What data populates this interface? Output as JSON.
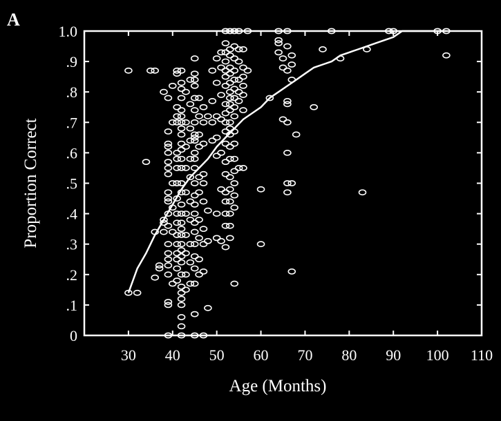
{
  "panel_label": "A",
  "colors": {
    "background": "#000000",
    "foreground": "#ffffff"
  },
  "chart_data": {
    "type": "scatter",
    "xlabel": "Age (Months)",
    "ylabel": "Proportion Correct",
    "xlim": [
      20,
      110
    ],
    "ylim": [
      0,
      1.0
    ],
    "x_ticks": [
      30,
      40,
      50,
      60,
      70,
      80,
      90,
      100,
      110
    ],
    "y_ticks": [
      0,
      0.1,
      0.2,
      0.3,
      0.4,
      0.5,
      0.6,
      0.7,
      0.8,
      0.9,
      1.0
    ],
    "x_tick_labels": [
      "30",
      "40",
      "50",
      "60",
      "70",
      "80",
      "90",
      "100",
      "110"
    ],
    "y_tick_labels": [
      "0",
      ".1",
      ".2",
      ".3",
      ".4",
      ".5",
      ".6",
      ".7",
      ".8",
      ".9",
      "1.0"
    ],
    "grid": false,
    "marker": "open-ellipse",
    "points": [
      [
        30,
        0.14
      ],
      [
        30,
        0.87
      ],
      [
        32,
        0.14
      ],
      [
        34,
        0.57
      ],
      [
        35,
        0.87
      ],
      [
        36,
        0.87
      ],
      [
        36,
        0.34
      ],
      [
        36,
        0.19
      ],
      [
        37,
        0.23
      ],
      [
        37,
        0.22
      ],
      [
        38,
        0.8
      ],
      [
        38,
        0.38
      ],
      [
        38,
        0.34
      ],
      [
        38,
        0.37
      ],
      [
        39,
        0.78
      ],
      [
        39,
        0.67
      ],
      [
        39,
        0.63
      ],
      [
        39,
        0.62
      ],
      [
        39,
        0.6
      ],
      [
        39,
        0.57
      ],
      [
        39,
        0.55
      ],
      [
        39,
        0.53
      ],
      [
        39,
        0.47
      ],
      [
        39,
        0.45
      ],
      [
        39,
        0.44
      ],
      [
        39,
        0.4
      ],
      [
        39,
        0.36
      ],
      [
        39,
        0.3
      ],
      [
        39,
        0.27
      ],
      [
        39,
        0.25
      ],
      [
        39,
        0.23
      ],
      [
        39,
        0.2
      ],
      [
        39,
        0.11
      ],
      [
        39,
        0.1
      ],
      [
        39,
        0.0
      ],
      [
        40,
        0.82
      ],
      [
        40,
        0.7
      ],
      [
        40,
        0.5
      ],
      [
        40,
        0.42
      ],
      [
        40,
        0.34
      ],
      [
        40,
        0.17
      ],
      [
        41,
        0.87
      ],
      [
        41,
        0.86
      ],
      [
        41,
        0.75
      ],
      [
        41,
        0.72
      ],
      [
        41,
        0.7
      ],
      [
        41,
        0.6
      ],
      [
        41,
        0.58
      ],
      [
        41,
        0.55
      ],
      [
        41,
        0.5
      ],
      [
        41,
        0.45
      ],
      [
        41,
        0.4
      ],
      [
        41,
        0.37
      ],
      [
        41,
        0.33
      ],
      [
        41,
        0.3
      ],
      [
        41,
        0.27
      ],
      [
        41,
        0.25
      ],
      [
        41,
        0.22
      ],
      [
        41,
        0.18
      ],
      [
        42,
        0.87
      ],
      [
        42,
        0.83
      ],
      [
        42,
        0.81
      ],
      [
        42,
        0.78
      ],
      [
        42,
        0.74
      ],
      [
        42,
        0.72
      ],
      [
        42,
        0.7
      ],
      [
        42,
        0.68
      ],
      [
        42,
        0.66
      ],
      [
        42,
        0.63
      ],
      [
        42,
        0.61
      ],
      [
        42,
        0.58
      ],
      [
        42,
        0.55
      ],
      [
        42,
        0.5
      ],
      [
        42,
        0.47
      ],
      [
        42,
        0.43
      ],
      [
        42,
        0.4
      ],
      [
        42,
        0.37
      ],
      [
        42,
        0.35
      ],
      [
        42,
        0.33
      ],
      [
        42,
        0.3
      ],
      [
        42,
        0.28
      ],
      [
        42,
        0.26
      ],
      [
        42,
        0.24
      ],
      [
        42,
        0.2
      ],
      [
        42,
        0.16
      ],
      [
        42,
        0.14
      ],
      [
        42,
        0.12
      ],
      [
        42,
        0.1
      ],
      [
        42,
        0.06
      ],
      [
        42,
        0.03
      ],
      [
        42,
        0.0
      ],
      [
        43,
        0.8
      ],
      [
        43,
        0.7
      ],
      [
        43,
        0.62
      ],
      [
        43,
        0.55
      ],
      [
        43,
        0.47
      ],
      [
        43,
        0.4
      ],
      [
        43,
        0.33
      ],
      [
        43,
        0.27
      ],
      [
        43,
        0.2
      ],
      [
        43,
        0.15
      ],
      [
        44,
        0.84
      ],
      [
        44,
        0.76
      ],
      [
        44,
        0.68
      ],
      [
        44,
        0.64
      ],
      [
        44,
        0.58
      ],
      [
        44,
        0.52
      ],
      [
        44,
        0.44
      ],
      [
        44,
        0.38
      ],
      [
        44,
        0.3
      ],
      [
        44,
        0.24
      ],
      [
        44,
        0.17
      ],
      [
        45,
        0.91
      ],
      [
        45,
        0.86
      ],
      [
        45,
        0.84
      ],
      [
        45,
        0.82
      ],
      [
        45,
        0.78
      ],
      [
        45,
        0.74
      ],
      [
        45,
        0.7
      ],
      [
        45,
        0.66
      ],
      [
        45,
        0.65
      ],
      [
        45,
        0.64
      ],
      [
        45,
        0.6
      ],
      [
        45,
        0.58
      ],
      [
        45,
        0.55
      ],
      [
        45,
        0.5
      ],
      [
        45,
        0.46
      ],
      [
        45,
        0.43
      ],
      [
        45,
        0.4
      ],
      [
        45,
        0.37
      ],
      [
        45,
        0.34
      ],
      [
        45,
        0.3
      ],
      [
        45,
        0.26
      ],
      [
        45,
        0.22
      ],
      [
        45,
        0.17
      ],
      [
        45,
        0.07
      ],
      [
        45,
        0.0
      ],
      [
        46,
        0.78
      ],
      [
        46,
        0.72
      ],
      [
        46,
        0.66
      ],
      [
        46,
        0.62
      ],
      [
        46,
        0.52
      ],
      [
        46,
        0.47
      ],
      [
        46,
        0.38
      ],
      [
        46,
        0.32
      ],
      [
        46,
        0.25
      ],
      [
        46,
        0.2
      ],
      [
        47,
        0.75
      ],
      [
        47,
        0.7
      ],
      [
        47,
        0.63
      ],
      [
        47,
        0.53
      ],
      [
        47,
        0.5
      ],
      [
        47,
        0.44
      ],
      [
        47,
        0.35
      ],
      [
        47,
        0.3
      ],
      [
        47,
        0.21
      ],
      [
        47,
        0.0
      ],
      [
        48,
        0.72
      ],
      [
        48,
        0.41
      ],
      [
        48,
        0.31
      ],
      [
        48,
        0.09
      ],
      [
        49,
        0.87
      ],
      [
        49,
        0.77
      ],
      [
        49,
        0.7
      ],
      [
        49,
        0.64
      ],
      [
        50,
        0.91
      ],
      [
        50,
        0.83
      ],
      [
        50,
        0.72
      ],
      [
        50,
        0.65
      ],
      [
        50,
        0.59
      ],
      [
        50,
        0.4
      ],
      [
        50,
        0.32
      ],
      [
        51,
        0.93
      ],
      [
        51,
        0.88
      ],
      [
        51,
        0.79
      ],
      [
        51,
        0.71
      ],
      [
        51,
        0.6
      ],
      [
        51,
        0.48
      ],
      [
        51,
        0.31
      ],
      [
        52,
        1.0
      ],
      [
        52,
        0.96
      ],
      [
        52,
        0.93
      ],
      [
        52,
        0.9
      ],
      [
        52,
        0.87
      ],
      [
        52,
        0.85
      ],
      [
        52,
        0.82
      ],
      [
        52,
        0.76
      ],
      [
        52,
        0.73
      ],
      [
        52,
        0.7
      ],
      [
        52,
        0.67
      ],
      [
        52,
        0.63
      ],
      [
        52,
        0.57
      ],
      [
        52,
        0.53
      ],
      [
        52,
        0.47
      ],
      [
        52,
        0.44
      ],
      [
        52,
        0.4
      ],
      [
        52,
        0.36
      ],
      [
        52,
        0.29
      ],
      [
        53,
        1.0
      ],
      [
        53,
        0.94
      ],
      [
        53,
        0.92
      ],
      [
        53,
        0.88
      ],
      [
        53,
        0.86
      ],
      [
        53,
        0.83
      ],
      [
        53,
        0.8
      ],
      [
        53,
        0.78
      ],
      [
        53,
        0.76
      ],
      [
        53,
        0.74
      ],
      [
        53,
        0.7
      ],
      [
        53,
        0.68
      ],
      [
        53,
        0.66
      ],
      [
        53,
        0.62
      ],
      [
        53,
        0.58
      ],
      [
        53,
        0.52
      ],
      [
        53,
        0.48
      ],
      [
        53,
        0.44
      ],
      [
        53,
        0.4
      ],
      [
        53,
        0.36
      ],
      [
        53,
        0.32
      ],
      [
        54,
        1.0
      ],
      [
        54,
        0.95
      ],
      [
        54,
        0.91
      ],
      [
        54,
        0.87
      ],
      [
        54,
        0.84
      ],
      [
        54,
        0.81
      ],
      [
        54,
        0.78
      ],
      [
        54,
        0.75
      ],
      [
        54,
        0.72
      ],
      [
        54,
        0.67
      ],
      [
        54,
        0.63
      ],
      [
        54,
        0.58
      ],
      [
        54,
        0.54
      ],
      [
        54,
        0.5
      ],
      [
        54,
        0.46
      ],
      [
        54,
        0.42
      ],
      [
        54,
        0.17
      ],
      [
        55,
        1.0
      ],
      [
        55,
        0.94
      ],
      [
        55,
        0.9
      ],
      [
        55,
        0.84
      ],
      [
        55,
        0.8
      ],
      [
        55,
        0.77
      ],
      [
        55,
        0.55
      ],
      [
        56,
        0.94
      ],
      [
        56,
        0.88
      ],
      [
        56,
        0.85
      ],
      [
        56,
        0.82
      ],
      [
        56,
        0.79
      ],
      [
        56,
        0.74
      ],
      [
        56,
        0.55
      ],
      [
        57,
        1.0
      ],
      [
        57,
        0.87
      ],
      [
        60,
        0.48
      ],
      [
        60,
        0.3
      ],
      [
        62,
        0.78
      ],
      [
        64,
        1.0
      ],
      [
        64,
        0.97
      ],
      [
        64,
        0.96
      ],
      [
        64,
        0.93
      ],
      [
        65,
        0.91
      ],
      [
        65,
        0.88
      ],
      [
        65,
        0.71
      ],
      [
        66,
        1.0
      ],
      [
        66,
        0.95
      ],
      [
        66,
        0.87
      ],
      [
        66,
        0.77
      ],
      [
        66,
        0.76
      ],
      [
        66,
        0.7
      ],
      [
        66,
        0.6
      ],
      [
        66,
        0.5
      ],
      [
        66,
        0.47
      ],
      [
        67,
        0.92
      ],
      [
        67,
        0.89
      ],
      [
        67,
        0.84
      ],
      [
        67,
        0.5
      ],
      [
        67,
        0.21
      ],
      [
        68,
        0.66
      ],
      [
        72,
        0.75
      ],
      [
        74,
        0.94
      ],
      [
        76,
        1.0
      ],
      [
        78,
        0.91
      ],
      [
        83,
        0.47
      ],
      [
        84,
        0.94
      ],
      [
        89,
        1.0
      ],
      [
        90,
        1.0
      ],
      [
        100,
        1.0
      ],
      [
        102,
        1.0
      ],
      [
        102,
        0.92
      ]
    ],
    "fit_line": {
      "x": [
        30,
        32,
        34,
        36,
        38,
        40,
        42,
        44,
        46,
        48,
        50,
        52,
        54,
        56,
        58,
        60,
        62,
        64,
        66,
        68,
        70,
        72,
        74,
        76,
        78,
        80,
        82,
        84,
        86,
        88,
        90,
        92,
        94,
        96,
        98,
        100,
        102
      ],
      "y": [
        0.14,
        0.22,
        0.27,
        0.33,
        0.38,
        0.43,
        0.48,
        0.52,
        0.55,
        0.58,
        0.62,
        0.65,
        0.68,
        0.71,
        0.73,
        0.75,
        0.78,
        0.8,
        0.82,
        0.84,
        0.86,
        0.88,
        0.89,
        0.9,
        0.92,
        0.93,
        0.94,
        0.95,
        0.96,
        0.97,
        0.98,
        1.0,
        1.0,
        1.0,
        1.0,
        1.0,
        1.0
      ]
    }
  }
}
